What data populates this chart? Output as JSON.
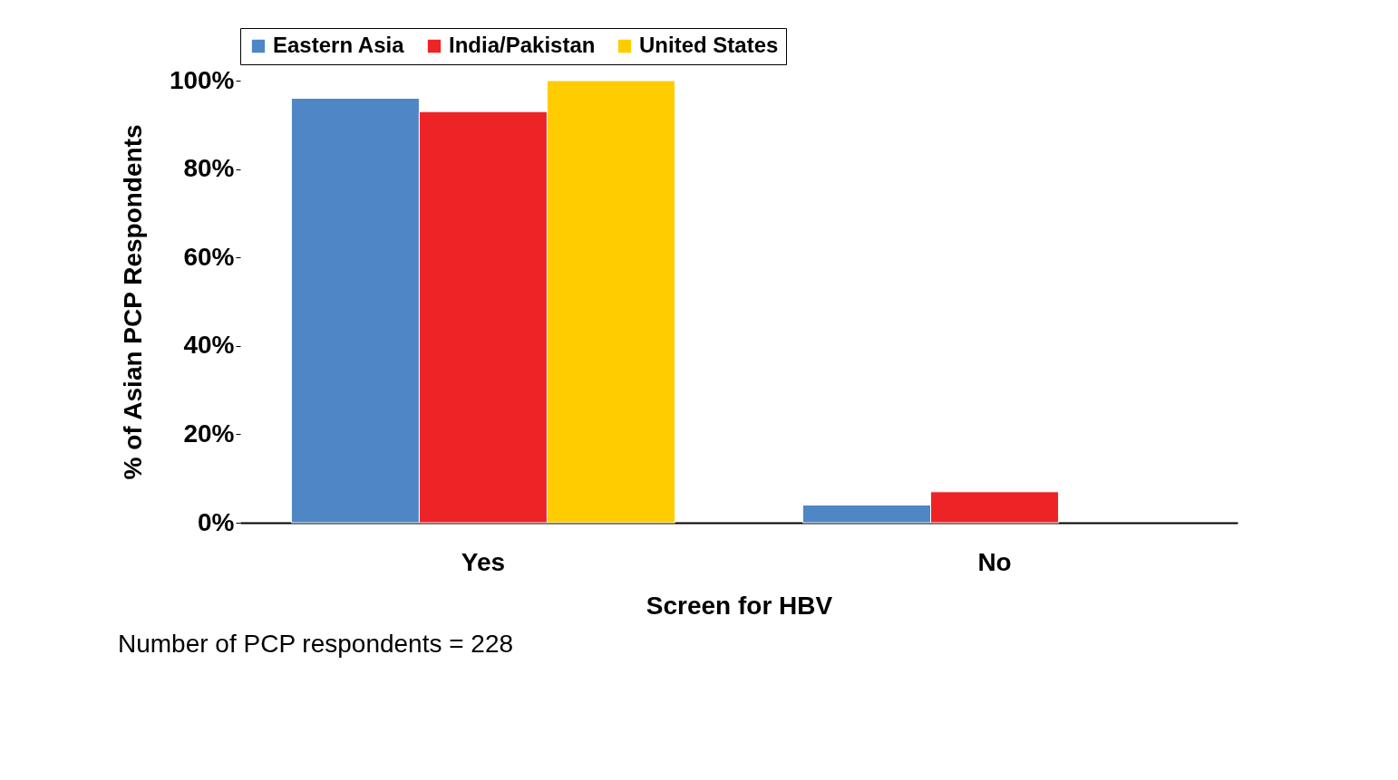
{
  "chart_data": {
    "type": "bar",
    "categories": [
      "Yes",
      "No"
    ],
    "series": [
      {
        "name": "Eastern Asia",
        "color": "#4f86c6",
        "values": [
          96,
          4
        ]
      },
      {
        "name": "India/Pakistan",
        "color": "#ee2326",
        "values": [
          93,
          7
        ]
      },
      {
        "name": "United States",
        "color": "#ffcc00",
        "values": [
          100,
          null
        ]
      }
    ],
    "xlabel": "Screen for HBV",
    "ylabel": "% of Asian PCP Respondents",
    "ylim": [
      0,
      100
    ],
    "yticks": [
      {
        "value": 0,
        "label": "0%"
      },
      {
        "value": 20,
        "label": "20%"
      },
      {
        "value": 40,
        "label": "40%"
      },
      {
        "value": 60,
        "label": "60%"
      },
      {
        "value": 80,
        "label": "80%"
      },
      {
        "value": 100,
        "label": "100%"
      }
    ],
    "legend": "top",
    "grid": false,
    "annotations": [
      "Number of PCP respondents = 228"
    ]
  }
}
